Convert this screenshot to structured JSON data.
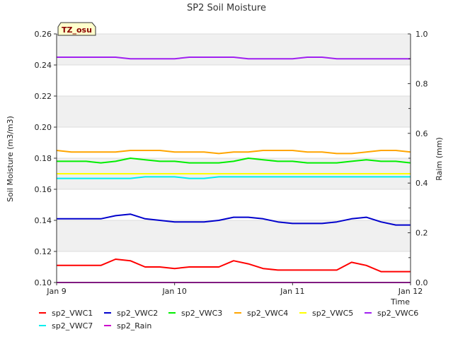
{
  "chart_data": {
    "type": "line",
    "title": "SP2 Soil Moisture",
    "xlabel": "Time",
    "ylabel": "Soil Moisture (m3/m3)",
    "y2label": "Raim (mm)",
    "badge": "TZ_osu",
    "x_ticks": [
      "Jan 9",
      "Jan 10",
      "Jan 11",
      "Jan 12"
    ],
    "xlim": [
      0,
      3
    ],
    "ylim": [
      0.1,
      0.26
    ],
    "y_ticks": [
      "0.10",
      "0.12",
      "0.14",
      "0.16",
      "0.18",
      "0.20",
      "0.22",
      "0.24",
      "0.26"
    ],
    "y2lim": [
      0.0,
      1.0
    ],
    "y2_ticks": [
      "0.0",
      "0.2",
      "0.4",
      "0.6",
      "0.8",
      "1.0"
    ],
    "grid": true,
    "legend_position": "bottom",
    "x": [
      0,
      0.125,
      0.25,
      0.375,
      0.5,
      0.625,
      0.75,
      0.875,
      1,
      1.125,
      1.25,
      1.375,
      1.5,
      1.625,
      1.75,
      1.875,
      2,
      2.125,
      2.25,
      2.375,
      2.5,
      2.625,
      2.75,
      2.875,
      3
    ],
    "series": [
      {
        "name": "sp2_VWC1",
        "color": "#ff0000",
        "axis": "left",
        "values": [
          0.111,
          0.111,
          0.111,
          0.111,
          0.115,
          0.114,
          0.11,
          0.11,
          0.109,
          0.11,
          0.11,
          0.11,
          0.114,
          0.112,
          0.109,
          0.108,
          0.108,
          0.108,
          0.108,
          0.108,
          0.113,
          0.111,
          0.107,
          0.107,
          0.107
        ]
      },
      {
        "name": "sp2_VWC2",
        "color": "#0000cc",
        "axis": "left",
        "values": [
          0.141,
          0.141,
          0.141,
          0.141,
          0.143,
          0.144,
          0.141,
          0.14,
          0.139,
          0.139,
          0.139,
          0.14,
          0.142,
          0.142,
          0.141,
          0.139,
          0.138,
          0.138,
          0.138,
          0.139,
          0.141,
          0.142,
          0.139,
          0.137,
          0.137
        ]
      },
      {
        "name": "sp2_VWC3",
        "color": "#00ee00",
        "axis": "left",
        "values": [
          0.178,
          0.178,
          0.178,
          0.177,
          0.178,
          0.18,
          0.179,
          0.178,
          0.178,
          0.177,
          0.177,
          0.177,
          0.178,
          0.18,
          0.179,
          0.178,
          0.178,
          0.177,
          0.177,
          0.177,
          0.178,
          0.179,
          0.178,
          0.178,
          0.177
        ]
      },
      {
        "name": "sp2_VWC4",
        "color": "#ffa500",
        "axis": "left",
        "values": [
          0.185,
          0.184,
          0.184,
          0.184,
          0.184,
          0.185,
          0.185,
          0.185,
          0.184,
          0.184,
          0.184,
          0.183,
          0.184,
          0.184,
          0.185,
          0.185,
          0.185,
          0.184,
          0.184,
          0.183,
          0.183,
          0.184,
          0.185,
          0.185,
          0.184
        ]
      },
      {
        "name": "sp2_VWC5",
        "color": "#ffff00",
        "axis": "left",
        "values": [
          0.17,
          0.17,
          0.17,
          0.17,
          0.17,
          0.17,
          0.17,
          0.17,
          0.17,
          0.17,
          0.17,
          0.17,
          0.17,
          0.17,
          0.17,
          0.17,
          0.17,
          0.17,
          0.17,
          0.17,
          0.17,
          0.17,
          0.17,
          0.17,
          0.17
        ]
      },
      {
        "name": "sp2_VWC6",
        "color": "#a020f0",
        "axis": "left",
        "values": [
          0.245,
          0.245,
          0.245,
          0.245,
          0.245,
          0.244,
          0.244,
          0.244,
          0.244,
          0.245,
          0.245,
          0.245,
          0.245,
          0.244,
          0.244,
          0.244,
          0.244,
          0.245,
          0.245,
          0.244,
          0.244,
          0.244,
          0.244,
          0.244,
          0.244
        ]
      },
      {
        "name": "sp2_VWC7",
        "color": "#00eeee",
        "axis": "left",
        "values": [
          0.167,
          0.167,
          0.167,
          0.167,
          0.167,
          0.167,
          0.168,
          0.168,
          0.168,
          0.167,
          0.167,
          0.168,
          0.168,
          0.168,
          0.168,
          0.168,
          0.168,
          0.168,
          0.168,
          0.168,
          0.168,
          0.168,
          0.168,
          0.168,
          0.168
        ]
      },
      {
        "name": "sp2_Rain",
        "color": "#cc00cc",
        "axis": "right",
        "values": [
          0,
          0,
          0,
          0,
          0,
          0,
          0,
          0,
          0,
          0,
          0,
          0,
          0,
          0,
          0,
          0,
          0,
          0,
          0,
          0,
          0,
          0,
          0,
          0,
          0
        ]
      }
    ]
  }
}
